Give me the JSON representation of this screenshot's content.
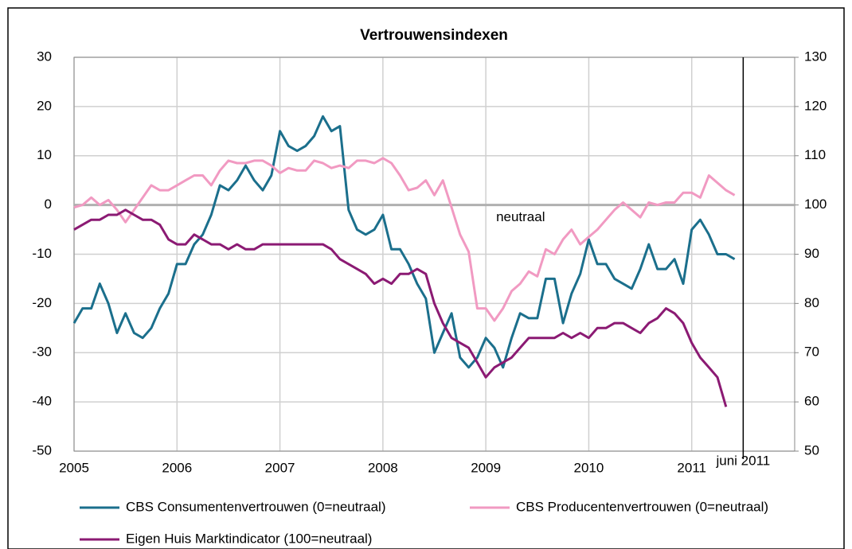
{
  "chart_data": {
    "type": "line",
    "title": "Vertrouwensindexen",
    "x": [
      2005,
      2005.083,
      2005.167,
      2005.25,
      2005.333,
      2005.417,
      2005.5,
      2005.583,
      2005.667,
      2005.75,
      2005.833,
      2005.917,
      2006,
      2006.083,
      2006.167,
      2006.25,
      2006.333,
      2006.417,
      2006.5,
      2006.583,
      2006.667,
      2006.75,
      2006.833,
      2006.917,
      2007,
      2007.083,
      2007.167,
      2007.25,
      2007.333,
      2007.417,
      2007.5,
      2007.583,
      2007.667,
      2007.75,
      2007.833,
      2007.917,
      2008,
      2008.083,
      2008.167,
      2008.25,
      2008.333,
      2008.417,
      2008.5,
      2008.583,
      2008.667,
      2008.75,
      2008.833,
      2008.917,
      2009,
      2009.083,
      2009.167,
      2009.25,
      2009.333,
      2009.417,
      2009.5,
      2009.583,
      2009.667,
      2009.75,
      2009.833,
      2009.917,
      2010,
      2010.083,
      2010.167,
      2010.25,
      2010.333,
      2010.417,
      2010.5,
      2010.583,
      2010.667,
      2010.75,
      2010.833,
      2010.917,
      2011,
      2011.083,
      2011.167,
      2011.25,
      2011.333,
      2011.417
    ],
    "series": [
      {
        "name": "CBS Consumentenvertrouwen (0=neutraal)",
        "color": "#1b6f8c",
        "axis": "y",
        "values": [
          -24,
          -21,
          -21,
          -16,
          -20,
          -26,
          -22,
          -26,
          -27,
          -25,
          -21,
          -18,
          -12,
          -12,
          -8,
          -6,
          -2,
          4,
          3,
          5,
          8,
          5,
          3,
          6,
          15,
          12,
          11,
          12,
          14,
          18,
          15,
          16,
          -1,
          -5,
          -6,
          -5,
          -2,
          -9,
          -9,
          -12,
          -16,
          -19,
          -30,
          -26,
          -22,
          -31,
          -33,
          -31,
          -27,
          -29,
          -33,
          -27,
          -22,
          -23,
          -23,
          -15,
          -15,
          -24,
          -18,
          -14,
          -7,
          -12,
          -12,
          -15,
          -16,
          -17,
          -13,
          -8,
          -13,
          -13,
          -11,
          -16,
          -5,
          -3,
          -6,
          -10,
          -10,
          -11
        ]
      },
      {
        "name": "CBS Producentenvertrouwen (0=neutraal)",
        "color": "#f19ac2",
        "axis": "y",
        "values": [
          -0.5,
          0,
          1.5,
          0,
          1,
          -1,
          -3.5,
          -1,
          1.5,
          4,
          3,
          3,
          4,
          5,
          6,
          6,
          4,
          7,
          9,
          8.5,
          8.5,
          9,
          9,
          8,
          6.5,
          7.5,
          7,
          7,
          9,
          8.5,
          7.5,
          8,
          7.5,
          9,
          9,
          8.5,
          9.5,
          8.5,
          6,
          3,
          3.5,
          5,
          2,
          5,
          -0.5,
          -6,
          -9.5,
          -21,
          -21,
          -23.5,
          -21,
          -17.5,
          -16,
          -13.5,
          -14.5,
          -9,
          -10,
          -7,
          -5,
          -8,
          -6.5,
          -5,
          -3,
          -1,
          0.5,
          -1,
          -2.5,
          0.5,
          0,
          0.5,
          0.5,
          2.5,
          2.5,
          1.5,
          6,
          4.5,
          3,
          2
        ]
      },
      {
        "name": "Eigen Huis Marktindicator (100=neutraal)",
        "color": "#8b1a73",
        "axis": "y2",
        "values": [
          95,
          96,
          97,
          97,
          98,
          98,
          99,
          98,
          97,
          97,
          96,
          93,
          92,
          92,
          94,
          93,
          92,
          92,
          91,
          92,
          91,
          91,
          92,
          92,
          92,
          92,
          92,
          92,
          92,
          92,
          91,
          89,
          88,
          87,
          86,
          84,
          85,
          84,
          86,
          86,
          87,
          86,
          80,
          76,
          73,
          72,
          71,
          68,
          65,
          67,
          68,
          69,
          71,
          73,
          73,
          73,
          73,
          74,
          73,
          74,
          73,
          75,
          75,
          76,
          76,
          75,
          74,
          76,
          77,
          79,
          78,
          76,
          72,
          69,
          67,
          65,
          59,
          null
        ]
      }
    ],
    "xlim": [
      2005,
      2012
    ],
    "xticks": [
      2005,
      2006,
      2007,
      2008,
      2009,
      2010,
      2011
    ],
    "ylim": [
      -50,
      30
    ],
    "yticks": [
      -50,
      -40,
      -30,
      -20,
      -10,
      0,
      10,
      20,
      30
    ],
    "y2lim": [
      50,
      130
    ],
    "y2ticks": [
      50,
      60,
      70,
      80,
      90,
      100,
      110,
      120,
      130
    ],
    "grid": true,
    "neutral_line": 0,
    "neutral_label": "neutraal",
    "marker_line": {
      "value": 2011.5,
      "label": "juni 2011"
    }
  }
}
